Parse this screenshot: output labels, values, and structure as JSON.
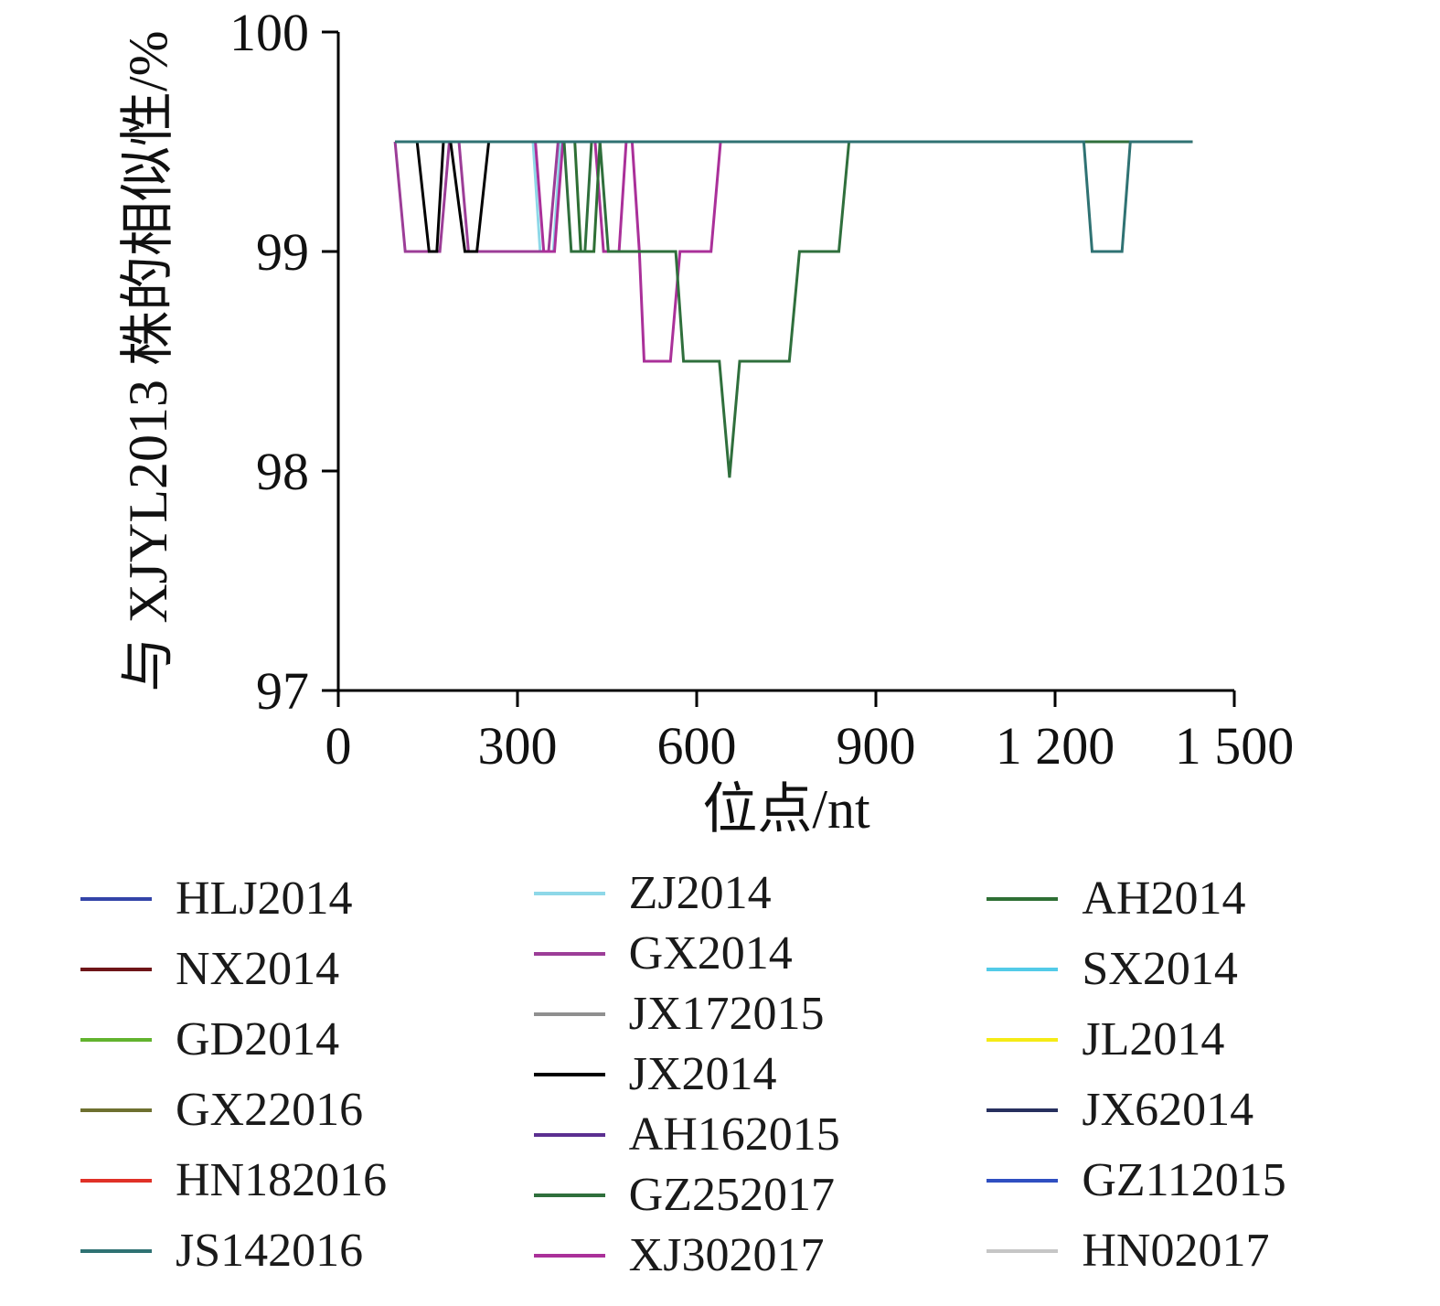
{
  "chart_data": {
    "type": "line",
    "title": "",
    "xlabel": "位点/nt",
    "ylabel": "与 XJYL2013 株的相似性/%",
    "xlim": [
      0,
      1500
    ],
    "ylim": [
      97,
      100
    ],
    "grid": false,
    "x_ticks": [
      {
        "value": 0,
        "label": "0"
      },
      {
        "value": 300,
        "label": "300"
      },
      {
        "value": 600,
        "label": "600"
      },
      {
        "value": 900,
        "label": "900"
      },
      {
        "value": 1200,
        "label": "1 200"
      },
      {
        "value": 1500,
        "label": "1 500"
      }
    ],
    "y_ticks": [
      {
        "value": 97,
        "label": "97"
      },
      {
        "value": 98,
        "label": "98"
      },
      {
        "value": 99,
        "label": "99"
      },
      {
        "value": 100,
        "label": "100"
      }
    ],
    "series": [
      {
        "name": "NX2014",
        "color": "#6e1518",
        "points": [
          [
            95,
            99.5
          ],
          [
            1430,
            99.5
          ]
        ]
      },
      {
        "name": "GD2014",
        "color": "#62b32e",
        "points": [
          [
            95,
            99.5
          ],
          [
            1430,
            99.5
          ]
        ]
      },
      {
        "name": "GX22016",
        "color": "#6e7030",
        "points": [
          [
            95,
            99.5
          ],
          [
            1430,
            99.5
          ]
        ]
      },
      {
        "name": "HN182016",
        "color": "#e03127",
        "points": [
          [
            95,
            99.5
          ],
          [
            1430,
            99.5
          ]
        ]
      },
      {
        "name": "JX172015",
        "color": "#8f8f8f",
        "points": [
          [
            95,
            99.5
          ],
          [
            1430,
            99.5
          ]
        ]
      },
      {
        "name": "AH162015",
        "color": "#5b2f90",
        "points": [
          [
            95,
            99.5
          ],
          [
            1430,
            99.5
          ]
        ]
      },
      {
        "name": "SX2014",
        "color": "#53cbe8",
        "points": [
          [
            95,
            99.5
          ],
          [
            1430,
            99.5
          ]
        ]
      },
      {
        "name": "JL2014",
        "color": "#f5eb16",
        "points": [
          [
            95,
            99.5
          ],
          [
            1430,
            99.5
          ]
        ]
      },
      {
        "name": "GZ112015",
        "color": "#2f4fc1",
        "points": [
          [
            95,
            99.5
          ],
          [
            1430,
            99.5
          ]
        ]
      },
      {
        "name": "HN02017",
        "color": "#c6c6c6",
        "points": [
          [
            95,
            99.5
          ],
          [
            1430,
            99.5
          ]
        ]
      },
      {
        "name": "JX62014",
        "color": "#27305e",
        "points": [
          [
            95,
            99.5
          ],
          [
            1430,
            99.5
          ]
        ]
      },
      {
        "name": "HLJ2014",
        "color": "#3344a8",
        "points": [
          [
            95,
            99.5
          ],
          [
            1430,
            99.5
          ]
        ]
      },
      {
        "name": "ZJ2014",
        "color": "#8ed8e8",
        "points": [
          [
            95,
            99.5
          ],
          [
            326,
            99.5
          ],
          [
            338,
            99
          ],
          [
            360,
            99
          ],
          [
            372,
            99.5
          ],
          [
            1430,
            99.5
          ]
        ]
      },
      {
        "name": "GX2014",
        "color": "#9c3d97",
        "points": [
          [
            95,
            99.5
          ],
          [
            112,
            99
          ],
          [
            170,
            99
          ],
          [
            186,
            99.5
          ],
          [
            202,
            99.5
          ],
          [
            218,
            99
          ],
          [
            352,
            99
          ],
          [
            368,
            99.5
          ],
          [
            1430,
            99.5
          ]
        ]
      },
      {
        "name": "XJ302017",
        "color": "#aa3099",
        "points": [
          [
            95,
            99.5
          ],
          [
            330,
            99.5
          ],
          [
            344,
            99
          ],
          [
            362,
            99
          ],
          [
            376,
            99.5
          ],
          [
            430,
            99.5
          ],
          [
            444,
            99
          ],
          [
            470,
            99
          ],
          [
            482,
            99.5
          ],
          [
            492,
            99.5
          ],
          [
            504,
            99
          ],
          [
            512,
            98.5
          ],
          [
            556,
            98.5
          ],
          [
            572,
            99
          ],
          [
            624,
            99
          ],
          [
            640,
            99.5
          ],
          [
            1430,
            99.5
          ]
        ]
      },
      {
        "name": "JX2014",
        "color": "#000000",
        "points": [
          [
            95,
            99.5
          ],
          [
            132,
            99.5
          ],
          [
            152,
            99
          ],
          [
            165,
            99
          ],
          [
            176,
            99.5
          ],
          [
            188,
            99.5
          ],
          [
            212,
            99
          ],
          [
            232,
            99
          ],
          [
            252,
            99.5
          ],
          [
            1430,
            99.5
          ]
        ]
      },
      {
        "name": "AH2014",
        "color": "#2e6f34",
        "points": [
          [
            95,
            99.5
          ],
          [
            396,
            99.5
          ],
          [
            406,
            99
          ],
          [
            428,
            99
          ],
          [
            438,
            99.5
          ],
          [
            1430,
            99.5
          ]
        ]
      },
      {
        "name": "GZ252017",
        "color": "#2f6f3c",
        "points": [
          [
            95,
            99.5
          ],
          [
            378,
            99.5
          ],
          [
            390,
            99
          ],
          [
            413,
            99
          ],
          [
            424,
            99.5
          ],
          [
            438,
            99.5
          ],
          [
            452,
            99
          ],
          [
            565,
            99
          ],
          [
            578,
            98.5
          ],
          [
            638,
            98.5
          ],
          [
            655,
            97.97
          ],
          [
            672,
            98.5
          ],
          [
            755,
            98.5
          ],
          [
            772,
            99
          ],
          [
            838,
            99
          ],
          [
            855,
            99.5
          ],
          [
            1430,
            99.5
          ]
        ]
      },
      {
        "name": "JS142016",
        "color": "#2f7273",
        "points": [
          [
            95,
            99.5
          ],
          [
            1248,
            99.5
          ],
          [
            1262,
            99
          ],
          [
            1312,
            99
          ],
          [
            1326,
            99.5
          ],
          [
            1430,
            99.5
          ]
        ]
      }
    ],
    "legend": {
      "position": "bottom",
      "columns": [
        [
          "HLJ2014",
          "NX2014",
          "GD2014",
          "GX22016",
          "HN182016",
          "JS142016"
        ],
        [
          "ZJ2014",
          "GX2014",
          "JX172015",
          "JX2014",
          "AH162015",
          "GZ252017",
          "XJ302017"
        ],
        [
          "AH2014",
          "SX2014",
          "JL2014",
          "JX62014",
          "GZ112015",
          "HN02017"
        ]
      ]
    }
  }
}
